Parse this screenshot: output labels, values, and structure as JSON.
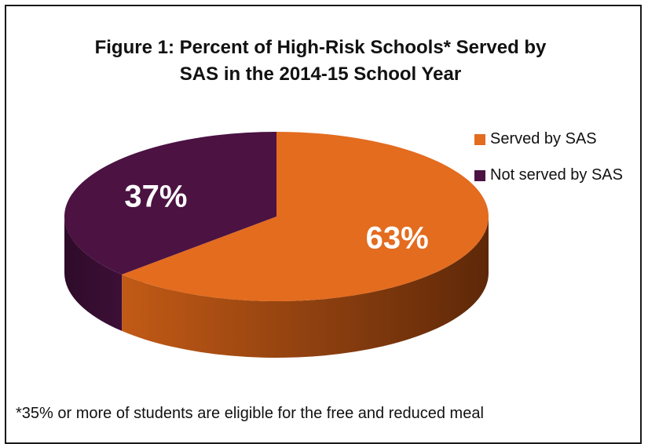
{
  "chart_data": {
    "type": "pie",
    "title_line1": "Figure 1: Percent of High-Risk Schools* Served by",
    "title_line2": "SAS in the 2014-15 School Year",
    "slices": [
      {
        "label": "Served by SAS",
        "value": 63,
        "display": "63%",
        "color": "#e36c1f",
        "side_color": "#7a360c"
      },
      {
        "label": "Not served by SAS",
        "value": 37,
        "display": "37%",
        "color": "#4b1242",
        "side_color": "#2a0a26"
      }
    ],
    "legend_position": "right",
    "footnote": "*35% or more of students are eligible for the free and reduced meal"
  }
}
